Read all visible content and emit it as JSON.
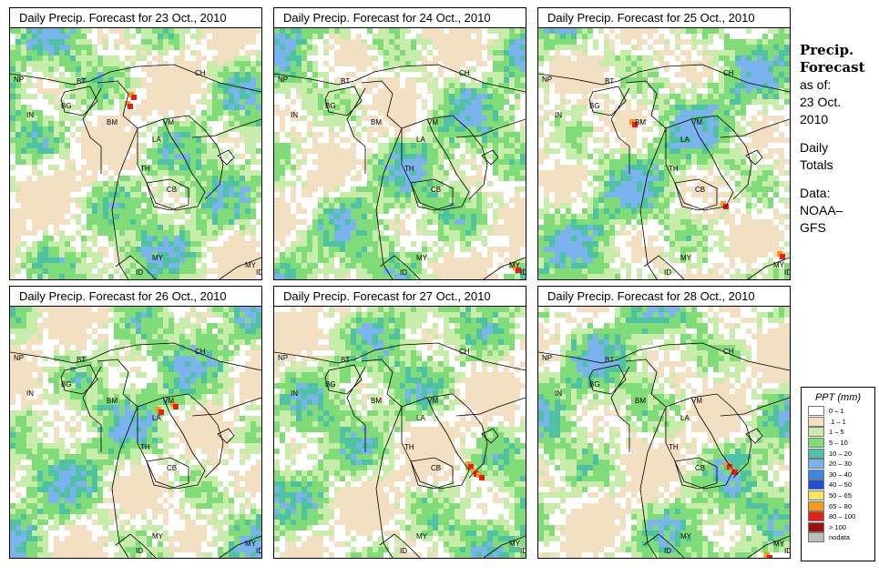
{
  "panels": [
    {
      "title": "Daily Precip. Forecast for  23 Oct., 2010"
    },
    {
      "title": "Daily Precip. Forecast for  24 Oct., 2010"
    },
    {
      "title": "Daily Precip. Forecast for  25 Oct., 2010"
    },
    {
      "title": "Daily Precip. Forecast for  26 Oct., 2010"
    },
    {
      "title": "Daily Precip. Forecast for  27 Oct., 2010"
    },
    {
      "title": "Daily Precip. Forecast for  28 Oct., 2010"
    }
  ],
  "map_labels": [
    "NP",
    "BT",
    "BG",
    "IN",
    "BM",
    "CH",
    "VM",
    "LA",
    "TH",
    "CB",
    "MY",
    "MY",
    "ID",
    "ID"
  ],
  "sidebar": {
    "heading1": "Precip.",
    "heading2": "Forecast",
    "asof": "as of:",
    "date1": "23 Oct.",
    "date2": "2010",
    "daily": "Daily",
    "totals": "Totals",
    "data_label": "Data:",
    "source1": "NOAA–",
    "source2": "GFS"
  },
  "legend": {
    "title": "PPT (mm)",
    "classes": [
      {
        "label": "0 – 1",
        "color": "#ffffff"
      },
      {
        "label": ".1 – 1",
        "color": "#f3dfc1"
      },
      {
        "label": "1 – 5",
        "color": "#c8ecaa"
      },
      {
        "label": "5 – 10",
        "color": "#7fdc79"
      },
      {
        "label": "10 – 20",
        "color": "#4fc2a3"
      },
      {
        "label": "20 – 30",
        "color": "#7ab3ee"
      },
      {
        "label": "30 – 40",
        "color": "#3e86e0"
      },
      {
        "label": "40 – 50",
        "color": "#1f4fd4"
      },
      {
        "label": "50 – 65",
        "color": "#f6e26b"
      },
      {
        "label": "65 – 80",
        "color": "#f39a1f"
      },
      {
        "label": "80 – 100",
        "color": "#e0221a"
      },
      {
        "label": "> 100",
        "color": "#9c0f0f"
      },
      {
        "label": "nodata",
        "color": "#bdbdbd"
      }
    ]
  }
}
